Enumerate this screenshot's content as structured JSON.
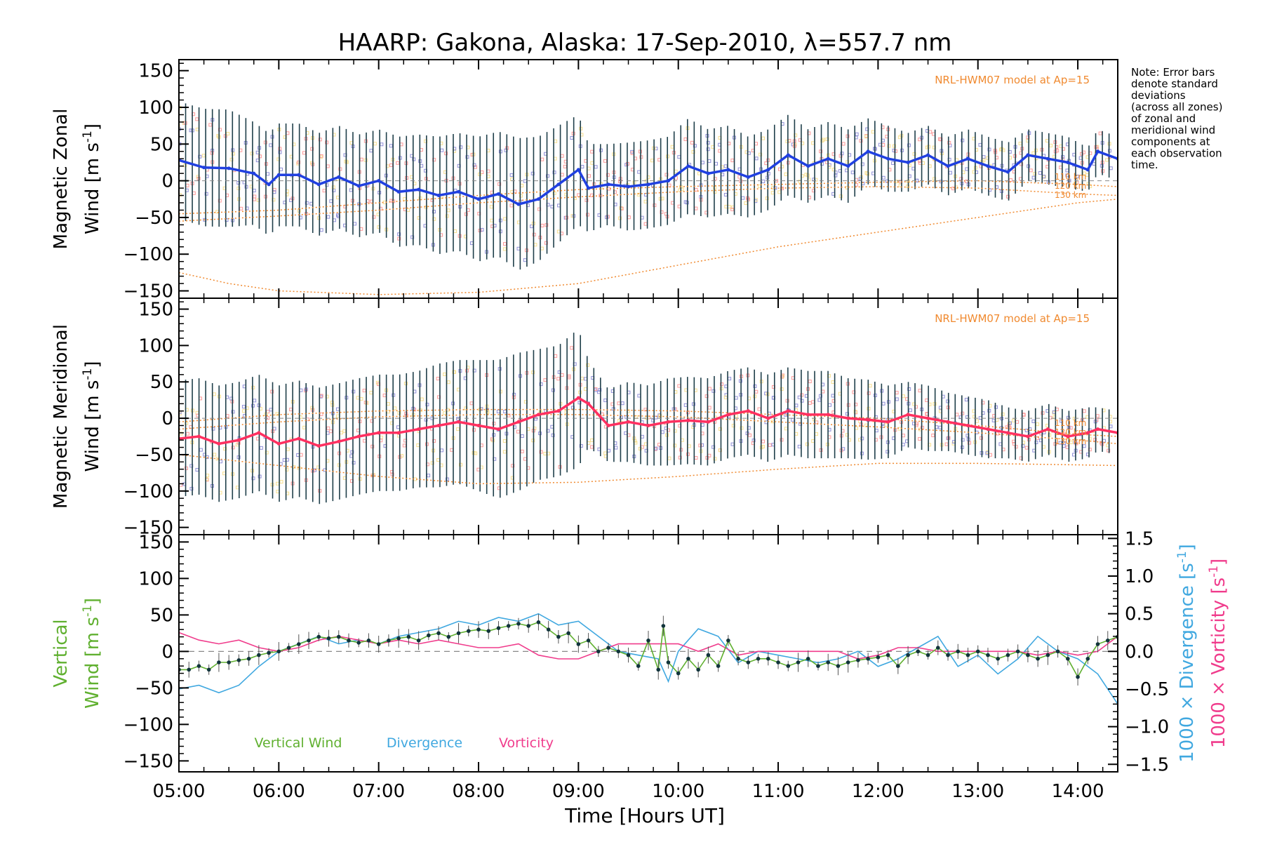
{
  "title": "HAARP: Gakona,  Alaska: 17-Sep-2010, λ=557.7 nm",
  "note_lines": [
    "Note: Error bars",
    "denote standard",
    "deviations",
    "(across all zones)",
    "of zonal and",
    "meridional wind",
    "components at",
    "each observation",
    "time."
  ],
  "x_axis": {
    "label": "Time [Hours UT]",
    "range_hours": [
      5.0,
      14.4
    ],
    "ticks": [
      {
        "value": 5,
        "label": "05:00"
      },
      {
        "value": 6,
        "label": "06:00"
      },
      {
        "value": 7,
        "label": "07:00"
      },
      {
        "value": 8,
        "label": "08:00"
      },
      {
        "value": 9,
        "label": "09:00"
      },
      {
        "value": 10,
        "label": "10:00"
      },
      {
        "value": 11,
        "label": "11:00"
      },
      {
        "value": 12,
        "label": "12:00"
      },
      {
        "value": 13,
        "label": "13:00"
      },
      {
        "value": 14,
        "label": "14:00"
      }
    ]
  },
  "colors": {
    "zonal": "#2040e0",
    "meridional": "#ff3060",
    "vertical": "#60b030",
    "divergence": "#40a8e0",
    "vorticity": "#f03c8c",
    "model": "#f08a30",
    "errorbar": "#1f3f4a",
    "scatter": "#9090d8",
    "scatter_pink": "#ff9a9a",
    "scatter_yellow": "#f8e090"
  },
  "chart_data": [
    {
      "type": "line",
      "panel": "zonal",
      "ylabel_line1": "Magnetic Zonal",
      "ylabel_line2": "Wind [m s",
      "ylabel_sup": "-1",
      "ylabel_end": "]",
      "ylim": [
        -160,
        165
      ],
      "yticks": [
        -150,
        -100,
        -50,
        0,
        50,
        100,
        150
      ],
      "model_label": "NRL-HWM07 model at Ap=15",
      "model_alt_labels": [
        "110 km",
        "120 km",
        "130 km"
      ],
      "x": [
        5.0,
        5.25,
        5.5,
        5.75,
        5.9,
        6.0,
        6.2,
        6.4,
        6.6,
        6.8,
        7.0,
        7.2,
        7.4,
        7.6,
        7.8,
        8.0,
        8.2,
        8.4,
        8.6,
        8.8,
        9.0,
        9.1,
        9.3,
        9.5,
        9.7,
        9.9,
        10.1,
        10.3,
        10.5,
        10.7,
        10.9,
        11.1,
        11.3,
        11.5,
        11.7,
        11.9,
        12.1,
        12.3,
        12.5,
        12.7,
        12.9,
        13.1,
        13.3,
        13.5,
        13.7,
        13.9,
        14.1,
        14.2,
        14.4
      ],
      "y": [
        28,
        18,
        17,
        10,
        -5,
        8,
        8,
        -5,
        5,
        -7,
        0,
        -15,
        -12,
        -20,
        -15,
        -25,
        -18,
        -32,
        -25,
        -5,
        15,
        -10,
        -5,
        -8,
        -5,
        0,
        20,
        10,
        15,
        5,
        15,
        35,
        20,
        30,
        20,
        40,
        30,
        25,
        35,
        20,
        30,
        20,
        12,
        35,
        30,
        25,
        15,
        40,
        30
      ],
      "error": [
        80,
        80,
        80,
        70,
        70,
        70,
        70,
        70,
        70,
        70,
        70,
        75,
        75,
        80,
        80,
        85,
        85,
        90,
        85,
        80,
        75,
        60,
        55,
        60,
        60,
        60,
        65,
        60,
        60,
        55,
        55,
        55,
        50,
        50,
        50,
        45,
        45,
        40,
        40,
        40,
        40,
        40,
        40,
        35,
        35,
        35,
        30,
        30,
        30
      ],
      "model_curves": [
        {
          "x": [
            5,
            6,
            7,
            8,
            9,
            10,
            11,
            12,
            13,
            14,
            14.4
          ],
          "y": [
            -45,
            -40,
            -30,
            -20,
            -12,
            -8,
            -5,
            -2,
            0,
            -5,
            -8
          ]
        },
        {
          "x": [
            5,
            6,
            7,
            8,
            9,
            10,
            11,
            12,
            13,
            14,
            14.4
          ],
          "y": [
            -55,
            -48,
            -40,
            -30,
            -22,
            -15,
            -10,
            -8,
            -10,
            -18,
            -20
          ]
        },
        {
          "x": [
            5,
            5.5,
            6,
            7,
            8,
            9,
            10,
            11,
            12,
            13,
            14,
            14.4
          ],
          "y": [
            -125,
            -140,
            -150,
            -155,
            -152,
            -140,
            -115,
            -90,
            -70,
            -50,
            -30,
            -25
          ]
        }
      ]
    },
    {
      "type": "line",
      "panel": "meridional",
      "ylabel_line1": "Magnetic Meridional",
      "ylabel_line2": "Wind [m s",
      "ylabel_sup": "-1",
      "ylabel_end": "]",
      "ylim": [
        -160,
        165
      ],
      "yticks": [
        -150,
        -100,
        -50,
        0,
        50,
        100,
        150
      ],
      "model_label": "NRL-HWM07 model at Ap=15",
      "model_alt_labels": [
        "110 km",
        "120 km",
        "130 km"
      ],
      "x": [
        5.0,
        5.2,
        5.4,
        5.6,
        5.8,
        6.0,
        6.2,
        6.4,
        6.6,
        6.8,
        7.0,
        7.2,
        7.4,
        7.6,
        7.8,
        8.0,
        8.2,
        8.4,
        8.6,
        8.8,
        9.0,
        9.1,
        9.3,
        9.5,
        9.7,
        9.9,
        10.1,
        10.3,
        10.5,
        10.7,
        10.9,
        11.1,
        11.3,
        11.5,
        11.7,
        11.9,
        12.1,
        12.3,
        12.5,
        12.7,
        12.9,
        13.1,
        13.3,
        13.5,
        13.7,
        13.9,
        14.1,
        14.2,
        14.4
      ],
      "y": [
        -28,
        -25,
        -35,
        -30,
        -20,
        -35,
        -28,
        -38,
        -32,
        -25,
        -20,
        -20,
        -15,
        -10,
        -5,
        -10,
        -15,
        -5,
        5,
        10,
        28,
        20,
        -10,
        -5,
        -10,
        -5,
        -3,
        -5,
        5,
        10,
        0,
        10,
        5,
        5,
        0,
        -2,
        -5,
        5,
        0,
        -5,
        -10,
        -15,
        -20,
        -25,
        -15,
        -25,
        -20,
        -15,
        -20
      ],
      "error": [
        80,
        80,
        80,
        80,
        80,
        80,
        80,
        80,
        80,
        80,
        80,
        80,
        80,
        85,
        85,
        90,
        95,
        95,
        90,
        90,
        95,
        60,
        50,
        55,
        55,
        60,
        60,
        60,
        60,
        60,
        60,
        60,
        60,
        60,
        55,
        55,
        50,
        45,
        45,
        40,
        40,
        40,
        35,
        35,
        35,
        35,
        35,
        30,
        30
      ],
      "model_curves": [
        {
          "x": [
            5,
            6,
            7,
            8,
            9,
            10,
            11,
            12,
            13,
            14,
            14.4
          ],
          "y": [
            -5,
            5,
            10,
            12,
            12,
            10,
            5,
            0,
            -10,
            -22,
            -25
          ]
        },
        {
          "x": [
            5,
            6,
            7,
            8,
            9,
            10,
            11,
            12,
            13,
            14,
            14.4
          ],
          "y": [
            -15,
            -5,
            2,
            5,
            5,
            2,
            -5,
            -12,
            -20,
            -30,
            -35
          ]
        },
        {
          "x": [
            5,
            6,
            7,
            8,
            9,
            10,
            11,
            12,
            13,
            14,
            14.4
          ],
          "y": [
            -50,
            -65,
            -80,
            -90,
            -88,
            -80,
            -70,
            -62,
            -62,
            -64,
            -65
          ]
        }
      ]
    },
    {
      "type": "line",
      "panel": "vertical",
      "ylabel_line1": "Vertical",
      "ylabel_line2": "Wind [m s",
      "ylabel_sup": "-1",
      "ylabel_end": "]",
      "ylim": [
        -165,
        160
      ],
      "yticks": [
        -150,
        -100,
        -50,
        0,
        50,
        100,
        150
      ],
      "right_axis": {
        "ylim": [
          -1.6,
          1.55
        ],
        "ticks": [
          -1.5,
          -1.0,
          -0.5,
          0.0,
          0.5,
          1.0,
          1.5
        ],
        "tick_labels": [
          "−1.5",
          "−1.0",
          "−0.5",
          "0.0",
          "0.5",
          "1.0",
          "1.5"
        ],
        "label_div": "1000 × Divergence [s",
        "label_vor": "1000 × Vorticity [s",
        "label_sup": "-1",
        "label_end": "]"
      },
      "legend": [
        "Vertical Wind",
        "Divergence",
        "Vorticity"
      ],
      "series": [
        {
          "name": "Vertical Wind",
          "axis": "left",
          "x": [
            5.0,
            5.1,
            5.2,
            5.3,
            5.4,
            5.5,
            5.6,
            5.7,
            5.8,
            5.9,
            6.0,
            6.1,
            6.2,
            6.3,
            6.4,
            6.5,
            6.6,
            6.7,
            6.8,
            6.9,
            7.0,
            7.1,
            7.2,
            7.3,
            7.4,
            7.5,
            7.6,
            7.7,
            7.8,
            7.9,
            8.0,
            8.1,
            8.2,
            8.3,
            8.4,
            8.5,
            8.6,
            8.7,
            8.8,
            8.9,
            9.0,
            9.1,
            9.2,
            9.3,
            9.4,
            9.5,
            9.6,
            9.7,
            9.8,
            9.85,
            9.9,
            10.0,
            10.1,
            10.2,
            10.3,
            10.4,
            10.5,
            10.6,
            10.7,
            10.8,
            10.9,
            11.0,
            11.1,
            11.2,
            11.3,
            11.4,
            11.5,
            11.6,
            11.7,
            11.8,
            11.9,
            12.0,
            12.1,
            12.2,
            12.3,
            12.4,
            12.5,
            12.6,
            12.7,
            12.8,
            12.9,
            13.0,
            13.1,
            13.2,
            13.3,
            13.4,
            13.5,
            13.6,
            13.7,
            13.8,
            13.9,
            14.0,
            14.1,
            14.2,
            14.3,
            14.4
          ],
          "y": [
            -25,
            -25,
            -20,
            -25,
            -15,
            -15,
            -12,
            -10,
            -5,
            -2,
            0,
            5,
            10,
            15,
            20,
            18,
            20,
            15,
            12,
            15,
            10,
            15,
            18,
            20,
            15,
            22,
            25,
            20,
            25,
            28,
            30,
            28,
            32,
            35,
            38,
            35,
            40,
            30,
            20,
            25,
            10,
            15,
            0,
            5,
            0,
            -5,
            -20,
            15,
            -25,
            35,
            -15,
            -30,
            -10,
            -25,
            -5,
            -20,
            15,
            -10,
            -15,
            -10,
            -10,
            -15,
            -20,
            -15,
            -10,
            -20,
            -15,
            -20,
            -15,
            -12,
            -10,
            -8,
            -5,
            -20,
            -5,
            0,
            -5,
            5,
            -5,
            0,
            -5,
            0,
            -5,
            -10,
            -5,
            0,
            -5,
            -10,
            -5,
            0,
            -10,
            -35,
            -10,
            10,
            15,
            20
          ]
        },
        {
          "name": "Divergence",
          "axis": "right",
          "x": [
            5.0,
            5.2,
            5.4,
            5.6,
            5.8,
            6.0,
            6.2,
            6.4,
            6.6,
            6.8,
            7.0,
            7.2,
            7.4,
            7.6,
            7.8,
            8.0,
            8.2,
            8.4,
            8.6,
            8.8,
            9.0,
            9.2,
            9.4,
            9.6,
            9.8,
            9.9,
            10.0,
            10.2,
            10.4,
            10.6,
            10.8,
            11.0,
            11.2,
            11.4,
            11.6,
            11.8,
            12.0,
            12.2,
            12.4,
            12.6,
            12.8,
            13.0,
            13.2,
            13.4,
            13.6,
            13.8,
            14.0,
            14.2,
            14.4
          ],
          "y": [
            -0.5,
            -0.45,
            -0.55,
            -0.45,
            -0.2,
            0.0,
            0.1,
            0.2,
            0.1,
            0.15,
            0.1,
            0.2,
            0.25,
            0.3,
            0.4,
            0.35,
            0.45,
            0.4,
            0.5,
            0.35,
            0.4,
            0.2,
            0.0,
            -0.05,
            -0.1,
            -0.4,
            0.0,
            0.3,
            0.2,
            -0.15,
            0.0,
            -0.05,
            -0.1,
            -0.15,
            -0.1,
            0.0,
            -0.2,
            -0.1,
            0.05,
            0.2,
            -0.2,
            -0.05,
            -0.3,
            -0.1,
            0.2,
            0.0,
            -0.1,
            -0.3,
            -0.7
          ]
        },
        {
          "name": "Vorticity",
          "axis": "right",
          "x": [
            5.0,
            5.2,
            5.4,
            5.6,
            5.8,
            6.0,
            6.2,
            6.4,
            6.6,
            6.8,
            7.0,
            7.2,
            7.4,
            7.6,
            7.8,
            8.0,
            8.2,
            8.4,
            8.6,
            8.8,
            9.0,
            9.2,
            9.4,
            9.6,
            9.8,
            10.0,
            10.2,
            10.4,
            10.6,
            10.8,
            11.0,
            11.2,
            11.4,
            11.6,
            11.8,
            12.0,
            12.2,
            12.4,
            12.6,
            12.8,
            13.0,
            13.2,
            13.4,
            13.6,
            13.8,
            14.0,
            14.2,
            14.4
          ],
          "y": [
            0.25,
            0.15,
            0.1,
            0.15,
            0.05,
            0.0,
            0.05,
            0.15,
            0.2,
            0.15,
            0.1,
            0.15,
            0.1,
            0.15,
            0.1,
            0.05,
            0.05,
            0.1,
            -0.05,
            -0.1,
            -0.1,
            0.0,
            0.1,
            0.1,
            0.1,
            0.1,
            0.0,
            0.1,
            -0.05,
            0.0,
            0.0,
            0.0,
            0.0,
            0.0,
            -0.1,
            -0.05,
            0.05,
            0.05,
            0.0,
            0.0,
            0.0,
            0.0,
            0.0,
            -0.05,
            0.0,
            -0.05,
            0.0,
            0.2
          ]
        }
      ]
    }
  ]
}
